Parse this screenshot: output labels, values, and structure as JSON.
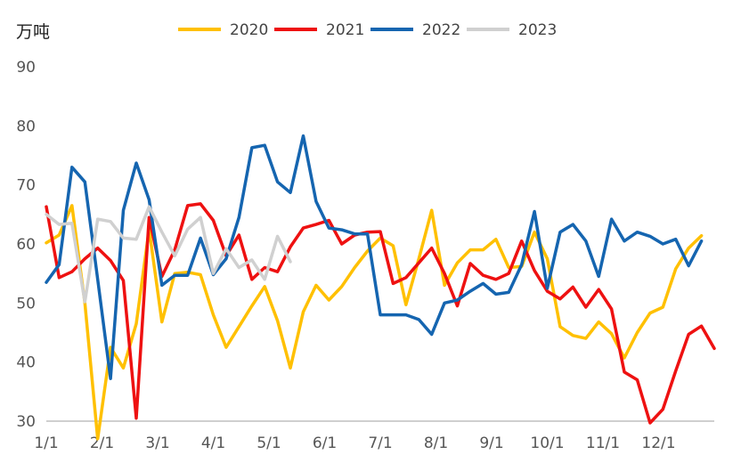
{
  "chart_data": {
    "type": "line",
    "unit_label": "万吨",
    "ylim": [
      30,
      90
    ],
    "yticks": [
      "30",
      "40",
      "50",
      "60",
      "70",
      "80",
      "90"
    ],
    "xticks": [
      "1/1",
      "2/1",
      "3/1",
      "4/1",
      "5/1",
      "6/1",
      "7/1",
      "8/1",
      "9/1",
      "10/1",
      "11/1",
      "12/1"
    ],
    "x_week_range": [
      1,
      53
    ],
    "grid": false,
    "legend_position": "top",
    "series": [
      {
        "name": "2020",
        "color": "#FFC000",
        "values": [
          60.2,
          61.5,
          66.5,
          50.0,
          27.0,
          42.5,
          39.0,
          46.5,
          62.5,
          46.8,
          55.0,
          55.2,
          54.8,
          48.0,
          42.5,
          46.0,
          49.5,
          52.8,
          47.0,
          39.0,
          48.5,
          53.0,
          50.5,
          52.8,
          56.0,
          58.8,
          61.0,
          59.7,
          49.7,
          57.5,
          65.7,
          53.0,
          56.8,
          59.0,
          59.0,
          60.8,
          56.0,
          56.2,
          62.0,
          57.5,
          46.0,
          44.5,
          44.0,
          46.8,
          44.8,
          40.7,
          45.0,
          48.3,
          49.3,
          55.8,
          59.3,
          61.4
        ]
      },
      {
        "name": "2021",
        "color": "#EE1111",
        "values": [
          66.3,
          54.3,
          55.3,
          57.5,
          59.3,
          57.2,
          53.8,
          30.5,
          64.5,
          54.5,
          59.0,
          66.5,
          66.8,
          64.0,
          58.0,
          61.5,
          54.0,
          56.0,
          55.3,
          59.5,
          62.7,
          63.3,
          64.0,
          60.0,
          61.5,
          62.0,
          62.1,
          53.3,
          54.3,
          56.8,
          59.3,
          55.0,
          49.5,
          56.7,
          54.7,
          54.0,
          55.0,
          60.5,
          55.5,
          52.0,
          50.7,
          52.7,
          49.3,
          52.3,
          49.0,
          38.3,
          37.0,
          29.7,
          32.0,
          38.5,
          44.7,
          46.1,
          42.3
        ]
      },
      {
        "name": "2022",
        "color": "#1565B0",
        "values": [
          53.5,
          56.5,
          73.0,
          70.5,
          54.0,
          37.2,
          65.7,
          73.7,
          67.5,
          53.0,
          54.7,
          54.7,
          61.0,
          54.8,
          57.5,
          64.5,
          76.3,
          76.7,
          70.5,
          68.7,
          78.3,
          67.2,
          62.7,
          62.4,
          61.7,
          61.7,
          48.0,
          48.0,
          48.0,
          47.2,
          44.7,
          50.0,
          50.5,
          52.0,
          53.3,
          51.5,
          51.8,
          56.5,
          65.5,
          52.5,
          62.0,
          63.3,
          60.5,
          54.5,
          64.2,
          60.5,
          62.0,
          61.3,
          60.0,
          60.8,
          56.3,
          60.5
        ]
      },
      {
        "name": "2023",
        "color": "#D0D0D0",
        "values": [
          65.0,
          63.3,
          63.5,
          50.2,
          64.2,
          63.8,
          61.0,
          60.8,
          66.3,
          62.0,
          58.0,
          62.5,
          64.5,
          55.0,
          59.2,
          56.0,
          57.3,
          54.0,
          61.3,
          57.0
        ]
      }
    ]
  }
}
